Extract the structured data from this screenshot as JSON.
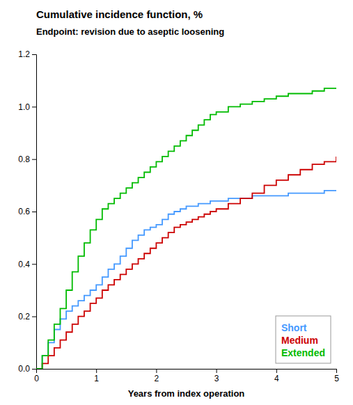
{
  "chart_data": {
    "type": "step",
    "title": "Cumulative incidence function, %",
    "subtitle": "Endpoint: revision due to aseptic loosening",
    "x_label": "Years from index operation",
    "x": [
      0,
      0.1,
      0.2,
      0.3,
      0.4,
      0.5,
      0.6,
      0.7,
      0.8,
      0.9,
      1.0,
      1.1,
      1.2,
      1.3,
      1.4,
      1.5,
      1.6,
      1.7,
      1.8,
      1.9,
      2.0,
      2.1,
      2.2,
      2.3,
      2.4,
      2.5,
      2.6,
      2.7,
      2.8,
      2.9,
      3.0,
      3.2,
      3.4,
      3.6,
      3.8,
      4.0,
      4.2,
      4.4,
      4.6,
      4.8,
      5.0
    ],
    "series": [
      {
        "name": "Short",
        "color": "#4499FF",
        "values": [
          0.0,
          0.05,
          0.1,
          0.15,
          0.19,
          0.22,
          0.24,
          0.26,
          0.28,
          0.3,
          0.32,
          0.35,
          0.38,
          0.4,
          0.43,
          0.46,
          0.49,
          0.51,
          0.53,
          0.54,
          0.55,
          0.57,
          0.59,
          0.6,
          0.61,
          0.62,
          0.62,
          0.63,
          0.63,
          0.64,
          0.64,
          0.65,
          0.65,
          0.66,
          0.66,
          0.66,
          0.67,
          0.67,
          0.67,
          0.68,
          0.68
        ]
      },
      {
        "name": "Medium",
        "color": "#CC0000",
        "values": [
          0.0,
          0.02,
          0.05,
          0.08,
          0.11,
          0.14,
          0.17,
          0.2,
          0.22,
          0.25,
          0.27,
          0.3,
          0.32,
          0.34,
          0.36,
          0.38,
          0.4,
          0.42,
          0.44,
          0.46,
          0.48,
          0.5,
          0.52,
          0.54,
          0.55,
          0.56,
          0.57,
          0.58,
          0.59,
          0.6,
          0.61,
          0.63,
          0.65,
          0.67,
          0.7,
          0.72,
          0.74,
          0.76,
          0.78,
          0.79,
          0.81
        ]
      },
      {
        "name": "Extended",
        "color": "#00BB00",
        "values": [
          0.0,
          0.05,
          0.11,
          0.17,
          0.23,
          0.3,
          0.37,
          0.43,
          0.48,
          0.53,
          0.57,
          0.61,
          0.63,
          0.65,
          0.67,
          0.69,
          0.71,
          0.73,
          0.75,
          0.77,
          0.79,
          0.81,
          0.83,
          0.85,
          0.87,
          0.89,
          0.91,
          0.93,
          0.95,
          0.97,
          0.98,
          1.0,
          1.01,
          1.02,
          1.03,
          1.04,
          1.05,
          1.05,
          1.06,
          1.07,
          1.07
        ]
      }
    ],
    "xlim": [
      0,
      5
    ],
    "ylim": [
      0,
      1.2
    ],
    "xticks": [
      0,
      1,
      2,
      3,
      4,
      5
    ],
    "yticks": [
      {
        "value": 0.0,
        "label": "0.0"
      },
      0.2,
      0.4,
      0.6,
      0.8,
      {
        "value": 1.0,
        "label": "1.0"
      },
      1.2
    ],
    "grid": false,
    "legend": "lower right"
  }
}
